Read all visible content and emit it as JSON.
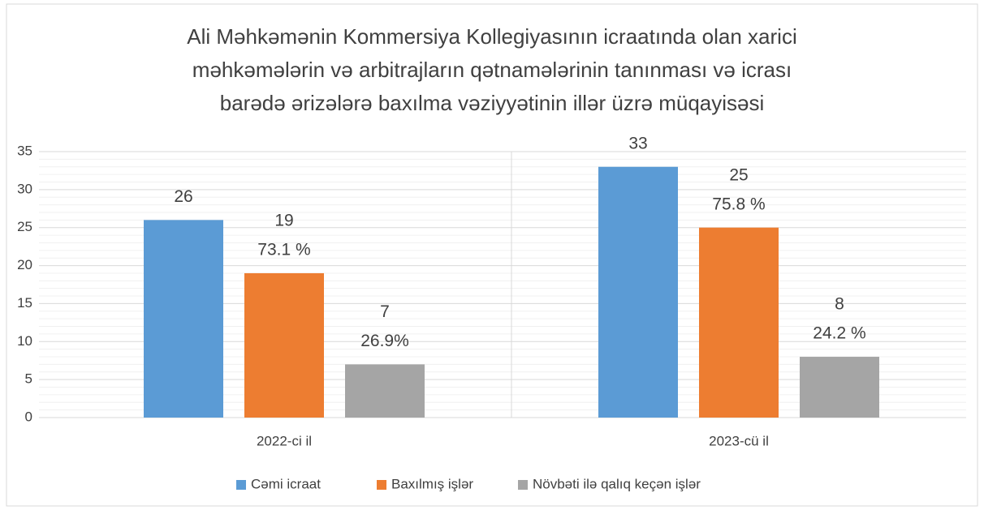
{
  "chart_data": {
    "type": "bar",
    "title": [
      "Ali Məhkəmənin Kommersiya Kollegiyasının icraatında olan xarici",
      "məhkəmələrin və arbitrajların  qətnamələrinin tanınması və icrası",
      "barədə ərizələrə baxılma vəziyyətinin illər üzrə müqayisəsi"
    ],
    "categories": [
      "2022-ci il",
      "2023-cü il"
    ],
    "series": [
      {
        "name": "Cəmi icraat",
        "color": "#5b9bd5",
        "values": [
          26,
          33
        ]
      },
      {
        "name": "Baxılmış işlər",
        "color": "#ed7d31",
        "values": [
          19,
          25
        ],
        "percent_labels": [
          "73.1 %",
          "75.8 %"
        ]
      },
      {
        "name": "Növbəti ilə qalıq keçən işlər",
        "color": "#a5a5a5",
        "values": [
          7,
          8
        ],
        "percent_labels": [
          "26.9%",
          "24.2 %"
        ]
      }
    ],
    "ylim": [
      0,
      35
    ],
    "yticks": [
      0,
      5,
      10,
      15,
      20,
      25,
      30,
      35
    ],
    "minor_yticks": [
      1,
      2,
      3,
      4,
      6,
      7,
      8,
      9,
      11,
      12,
      13,
      14,
      16,
      17,
      18,
      19,
      21,
      22,
      23,
      24,
      26,
      27,
      28,
      29,
      31,
      32,
      33,
      34
    ],
    "grid": true,
    "legend": "bottom"
  }
}
